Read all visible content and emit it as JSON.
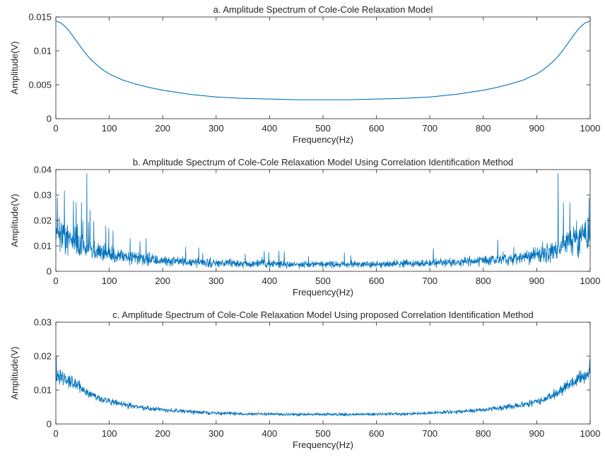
{
  "chart_data": [
    {
      "type": "line",
      "title": "a. Amplitude Spectrum of Cole-Cole Relaxation Model",
      "xlabel": "Frequency(Hz)",
      "ylabel": "Amplitude(V)",
      "xlim": [
        0,
        1000
      ],
      "ylim": [
        0,
        0.015
      ],
      "xticks": [
        0,
        100,
        200,
        300,
        400,
        500,
        600,
        700,
        800,
        900,
        1000
      ],
      "yticks": [
        0,
        0.005,
        0.01,
        0.015
      ],
      "xtick_labels": [
        "0",
        "100",
        "200",
        "300",
        "400",
        "500",
        "600",
        "700",
        "800",
        "900",
        "1000"
      ],
      "ytick_labels": [
        "0",
        "0.005",
        "0.01",
        "0.015"
      ],
      "grid": false,
      "color": "#0072BD",
      "series": [
        {
          "x": [
            0,
            10,
            20,
            30,
            40,
            50,
            60,
            70,
            80,
            90,
            100,
            125,
            150,
            175,
            200,
            250,
            300,
            350,
            400,
            450,
            500,
            550,
            600,
            650,
            700,
            750,
            800,
            825,
            850,
            875,
            900,
            910,
            920,
            930,
            940,
            950,
            960,
            970,
            980,
            990,
            1000
          ],
          "y": [
            0.0144,
            0.0141,
            0.0134,
            0.0124,
            0.0113,
            0.0102,
            0.0092,
            0.0084,
            0.0077,
            0.0071,
            0.0066,
            0.0057,
            0.0051,
            0.0046,
            0.0042,
            0.0036,
            0.0032,
            0.003,
            0.0029,
            0.0028,
            0.0028,
            0.0028,
            0.0029,
            0.003,
            0.0032,
            0.0036,
            0.0042,
            0.0046,
            0.0051,
            0.0057,
            0.0066,
            0.0071,
            0.0077,
            0.0084,
            0.0092,
            0.0102,
            0.0113,
            0.0124,
            0.0134,
            0.0141,
            0.0144
          ]
        }
      ]
    },
    {
      "type": "line",
      "title": "b. Amplitude Spectrum of Cole-Cole Relaxation Model Using Correlation Identification Method",
      "xlabel": "Frequency(Hz)",
      "ylabel": "Amplitude(V)",
      "xlim": [
        0,
        1000
      ],
      "ylim": [
        0,
        0.04
      ],
      "xticks": [
        0,
        100,
        200,
        300,
        400,
        500,
        600,
        700,
        800,
        900,
        1000
      ],
      "yticks": [
        0,
        0.01,
        0.02,
        0.03,
        0.04
      ],
      "xtick_labels": [
        "0",
        "100",
        "200",
        "300",
        "400",
        "500",
        "600",
        "700",
        "800",
        "900",
        "1000"
      ],
      "ytick_labels": [
        "0",
        "0.01",
        "0.02",
        "0.03",
        "0.04"
      ],
      "grid": false,
      "color": "#0072BD",
      "noise_amplitude": 0.45,
      "spikes": [
        {
          "x": 3,
          "y": 0.029
        },
        {
          "x": 38,
          "y": 0.027
        },
        {
          "x": 48,
          "y": 0.027
        },
        {
          "x": 58,
          "y": 0.0385
        },
        {
          "x": 64,
          "y": 0.024
        },
        {
          "x": 940,
          "y": 0.0385
        },
        {
          "x": 950,
          "y": 0.027
        },
        {
          "x": 962,
          "y": 0.027
        },
        {
          "x": 998,
          "y": 0.029
        }
      ],
      "series": [
        {
          "x": [
            0,
            10,
            20,
            30,
            40,
            50,
            60,
            70,
            80,
            90,
            100,
            125,
            150,
            175,
            200,
            250,
            300,
            350,
            400,
            450,
            500,
            550,
            600,
            650,
            700,
            750,
            800,
            825,
            850,
            875,
            900,
            910,
            920,
            930,
            940,
            950,
            960,
            970,
            980,
            990,
            1000
          ],
          "y": [
            0.0144,
            0.0141,
            0.0134,
            0.0124,
            0.0113,
            0.0102,
            0.0092,
            0.0084,
            0.0077,
            0.0071,
            0.0066,
            0.0057,
            0.0051,
            0.0046,
            0.0042,
            0.0036,
            0.0032,
            0.003,
            0.0029,
            0.0028,
            0.0028,
            0.0028,
            0.0029,
            0.003,
            0.0032,
            0.0036,
            0.0042,
            0.0046,
            0.0051,
            0.0057,
            0.0066,
            0.0071,
            0.0077,
            0.0084,
            0.0092,
            0.0102,
            0.0113,
            0.0124,
            0.0134,
            0.0141,
            0.0144
          ]
        }
      ]
    },
    {
      "type": "line",
      "title": "c. Amplitude Spectrum of Cole-Cole Relaxation Model Using proposed Correlation Identification Method",
      "xlabel": "Frequency(Hz)",
      "ylabel": "Amplitude(V)",
      "xlim": [
        0,
        1000
      ],
      "ylim": [
        0,
        0.03
      ],
      "xticks": [
        0,
        100,
        200,
        300,
        400,
        500,
        600,
        700,
        800,
        900,
        1000
      ],
      "yticks": [
        0,
        0.01,
        0.02,
        0.03
      ],
      "xtick_labels": [
        "0",
        "100",
        "200",
        "300",
        "400",
        "500",
        "600",
        "700",
        "800",
        "900",
        "1000"
      ],
      "ytick_labels": [
        "0",
        "0.01",
        "0.02",
        "0.03"
      ],
      "grid": false,
      "color": "#0072BD",
      "noise_amplitude": 0.14,
      "spikes": [
        {
          "x": 1,
          "y": 0.02
        },
        {
          "x": 999,
          "y": 0.019
        }
      ],
      "series": [
        {
          "x": [
            0,
            10,
            20,
            30,
            40,
            50,
            60,
            70,
            80,
            90,
            100,
            125,
            150,
            175,
            200,
            250,
            300,
            350,
            400,
            450,
            500,
            550,
            600,
            650,
            700,
            750,
            800,
            825,
            850,
            875,
            900,
            910,
            920,
            930,
            940,
            950,
            960,
            970,
            980,
            990,
            1000
          ],
          "y": [
            0.0144,
            0.0141,
            0.0134,
            0.0124,
            0.0113,
            0.0102,
            0.0092,
            0.0084,
            0.0077,
            0.0071,
            0.0066,
            0.0057,
            0.0051,
            0.0046,
            0.0042,
            0.0036,
            0.0032,
            0.003,
            0.0029,
            0.0028,
            0.0028,
            0.0028,
            0.0029,
            0.003,
            0.0032,
            0.0036,
            0.0042,
            0.0046,
            0.0051,
            0.0057,
            0.0066,
            0.0071,
            0.0077,
            0.0084,
            0.0092,
            0.0102,
            0.0113,
            0.0124,
            0.0134,
            0.0141,
            0.0144
          ]
        }
      ]
    }
  ]
}
